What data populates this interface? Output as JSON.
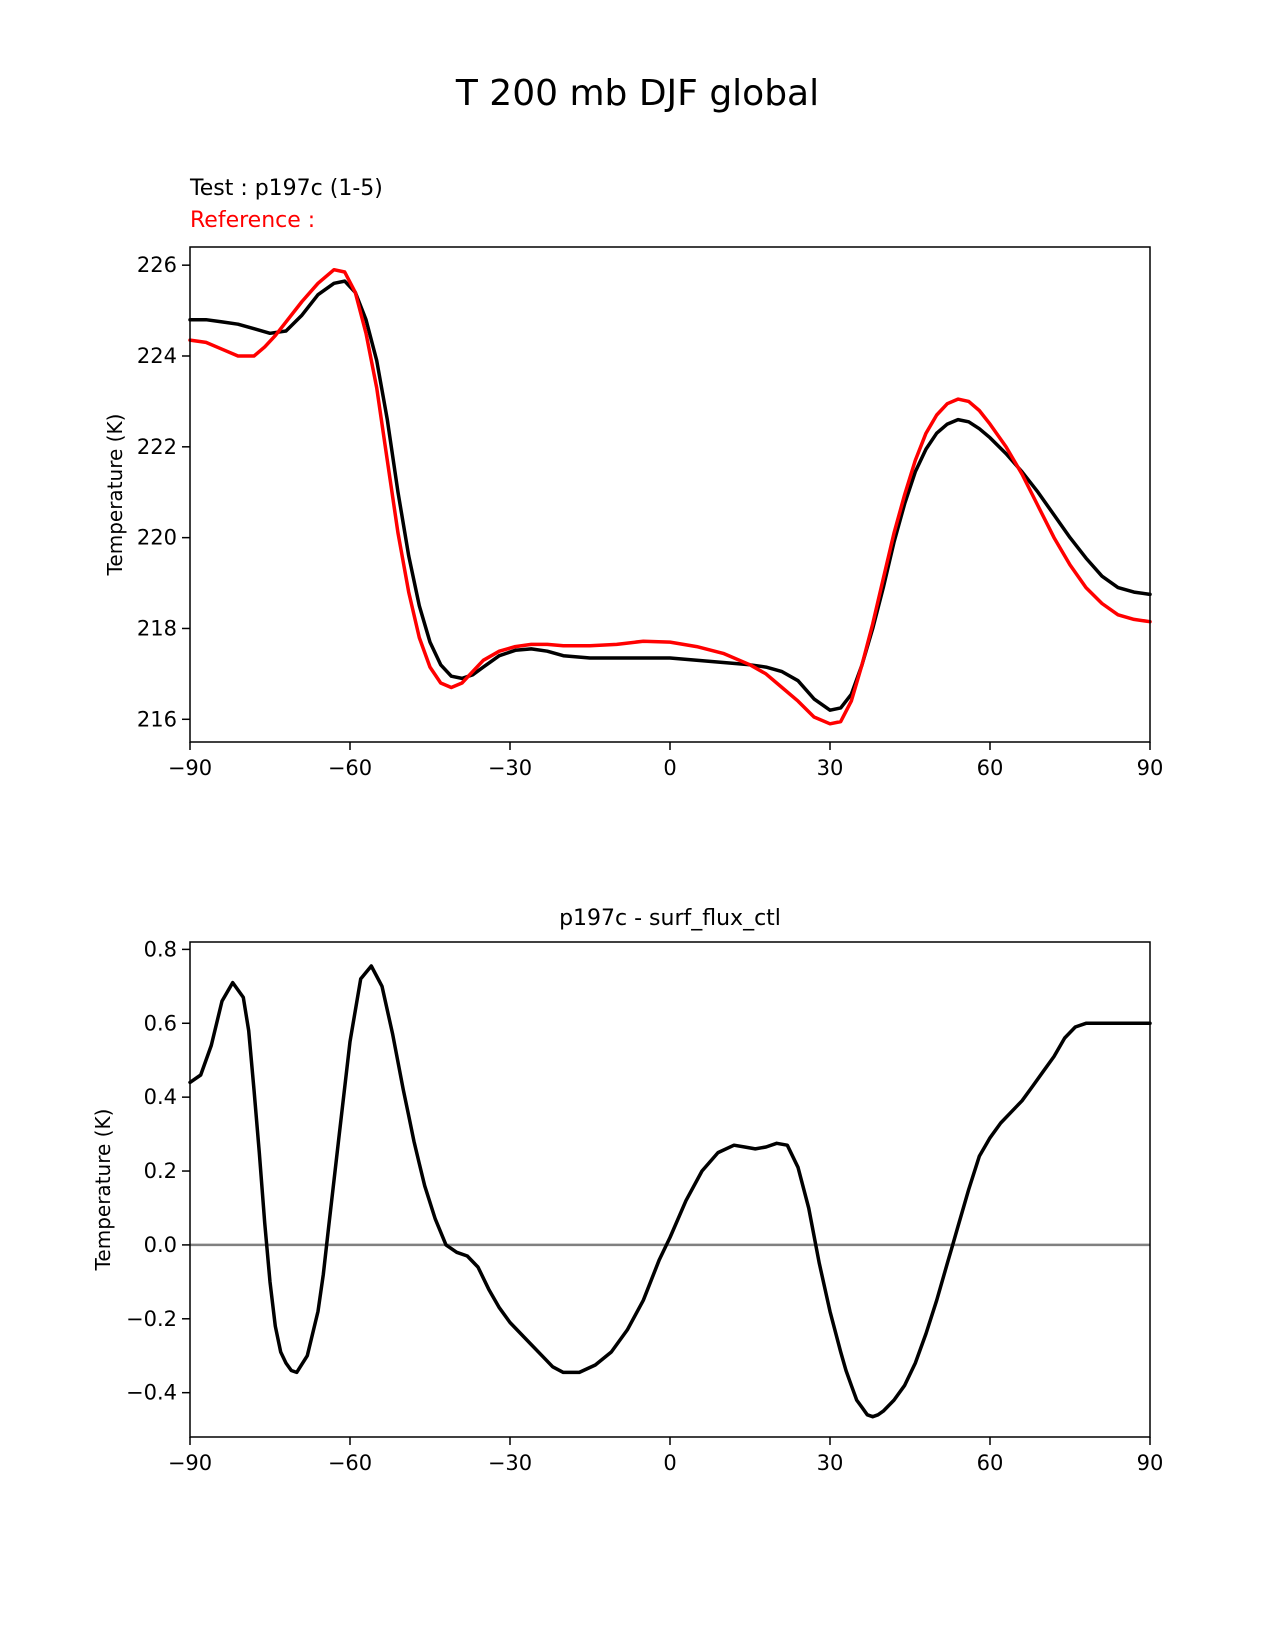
{
  "figure_title": "T 200 mb DJF global",
  "chart_data": [
    {
      "type": "line",
      "legend": {
        "test_label": "Test : p197c (1-5)",
        "reference_label": "Reference :"
      },
      "title": "",
      "xlabel": "",
      "ylabel": "Temperature (K)",
      "xlim": [
        -90,
        90
      ],
      "ylim": [
        215.5,
        226.4
      ],
      "xticks": [
        -90,
        -60,
        -30,
        0,
        30,
        60,
        90
      ],
      "xtick_labels": [
        "−90",
        "−60",
        "−30",
        "0",
        "30",
        "60",
        "90"
      ],
      "yticks": [
        216,
        218,
        220,
        222,
        224,
        226
      ],
      "ytick_labels": [
        "216",
        "218",
        "220",
        "222",
        "224",
        "226"
      ],
      "series": [
        {
          "name": "Test : p197c (1-5)",
          "color": "#000000",
          "x": [
            -90,
            -87,
            -84,
            -81,
            -78,
            -75,
            -72,
            -69,
            -66,
            -63,
            -61,
            -59,
            -57,
            -55,
            -53,
            -51,
            -49,
            -47,
            -45,
            -43,
            -41,
            -39,
            -37,
            -35,
            -32,
            -29,
            -26,
            -23,
            -20,
            -15,
            -10,
            -5,
            0,
            5,
            10,
            15,
            18,
            21,
            24,
            27,
            30,
            32,
            34,
            36,
            38,
            40,
            42,
            44,
            46,
            48,
            50,
            52,
            54,
            56,
            58,
            60,
            63,
            66,
            69,
            72,
            75,
            78,
            81,
            84,
            87,
            90
          ],
          "values": [
            224.8,
            224.8,
            224.75,
            224.7,
            224.6,
            224.5,
            224.55,
            224.9,
            225.35,
            225.6,
            225.65,
            225.4,
            224.8,
            223.9,
            222.6,
            221.0,
            219.6,
            218.5,
            217.7,
            217.2,
            216.95,
            216.9,
            216.98,
            217.15,
            217.4,
            217.52,
            217.55,
            217.5,
            217.4,
            217.35,
            217.35,
            217.35,
            217.35,
            217.3,
            217.25,
            217.2,
            217.15,
            217.05,
            216.85,
            216.45,
            216.2,
            216.25,
            216.55,
            217.2,
            218.0,
            218.9,
            219.9,
            220.75,
            221.45,
            221.95,
            222.3,
            222.5,
            222.6,
            222.55,
            222.4,
            222.2,
            221.85,
            221.45,
            221.0,
            220.5,
            220.0,
            219.55,
            219.15,
            218.9,
            218.8,
            218.75
          ]
        },
        {
          "name": "Reference :",
          "color": "#ff0000",
          "x": [
            -90,
            -87,
            -84,
            -81,
            -78,
            -76,
            -74,
            -72,
            -69,
            -66,
            -63,
            -61,
            -59,
            -57,
            -55,
            -53,
            -51,
            -49,
            -47,
            -45,
            -43,
            -41,
            -39,
            -37,
            -35,
            -32,
            -29,
            -26,
            -23,
            -20,
            -15,
            -10,
            -5,
            0,
            5,
            10,
            15,
            18,
            21,
            24,
            27,
            30,
            32,
            34,
            36,
            38,
            40,
            42,
            44,
            46,
            48,
            50,
            52,
            54,
            56,
            58,
            60,
            63,
            66,
            69,
            72,
            75,
            78,
            81,
            84,
            87,
            90
          ],
          "values": [
            224.35,
            224.3,
            224.15,
            224.0,
            224.0,
            224.2,
            224.45,
            224.75,
            225.2,
            225.6,
            225.9,
            225.85,
            225.4,
            224.5,
            223.3,
            221.7,
            220.1,
            218.8,
            217.8,
            217.15,
            216.8,
            216.7,
            216.8,
            217.05,
            217.3,
            217.5,
            217.6,
            217.65,
            217.65,
            217.62,
            217.62,
            217.65,
            217.72,
            217.7,
            217.6,
            217.45,
            217.2,
            217.0,
            216.7,
            216.4,
            216.05,
            215.9,
            215.95,
            216.4,
            217.2,
            218.1,
            219.1,
            220.1,
            220.95,
            221.7,
            222.3,
            222.7,
            222.95,
            223.05,
            223.0,
            222.8,
            222.5,
            222.0,
            221.4,
            220.7,
            220.0,
            219.4,
            218.9,
            218.55,
            218.3,
            218.2,
            218.15
          ]
        }
      ]
    },
    {
      "type": "line",
      "title": "p197c - surf_flux_ctl",
      "xlabel": "",
      "ylabel": "Temperature (K)",
      "xlim": [
        -90,
        90
      ],
      "ylim": [
        -0.52,
        0.82
      ],
      "xticks": [
        -90,
        -60,
        -30,
        0,
        30,
        60,
        90
      ],
      "xtick_labels": [
        "−90",
        "−60",
        "−30",
        "0",
        "30",
        "60",
        "90"
      ],
      "yticks": [
        -0.4,
        -0.2,
        0.0,
        0.2,
        0.4,
        0.6,
        0.8
      ],
      "ytick_labels": [
        "−0.4",
        "−0.2",
        "0.0",
        "0.2",
        "0.4",
        "0.6",
        "0.8"
      ],
      "zero_line_color": "#808080",
      "series": [
        {
          "name": "",
          "color": "#000000",
          "x": [
            -90,
            -88,
            -86,
            -84,
            -82,
            -80,
            -79,
            -78,
            -77,
            -76,
            -75,
            -74,
            -73,
            -72,
            -71,
            -70,
            -68,
            -66,
            -65,
            -64,
            -62,
            -60,
            -58,
            -56,
            -54,
            -52,
            -50,
            -49,
            -48,
            -47,
            -46,
            -44,
            -42,
            -40,
            -38,
            -36,
            -34,
            -32,
            -30,
            -28,
            -26,
            -24,
            -22,
            -20,
            -17,
            -14,
            -11,
            -8,
            -5,
            -2,
            0,
            3,
            6,
            9,
            12,
            14,
            16,
            18,
            20,
            22,
            24,
            26,
            28,
            30,
            32,
            33,
            34,
            35,
            36,
            37,
            38,
            39,
            40,
            42,
            44,
            46,
            48,
            50,
            52,
            53,
            54,
            56,
            58,
            60,
            62,
            64,
            66,
            68,
            70,
            72,
            74,
            76,
            78,
            80,
            82,
            84,
            86,
            88,
            90
          ],
          "values": [
            0.44,
            0.46,
            0.54,
            0.66,
            0.71,
            0.67,
            0.58,
            0.42,
            0.25,
            0.06,
            -0.1,
            -0.22,
            -0.29,
            -0.32,
            -0.34,
            -0.345,
            -0.3,
            -0.18,
            -0.08,
            0.05,
            0.3,
            0.55,
            0.72,
            0.755,
            0.7,
            0.57,
            0.42,
            0.35,
            0.28,
            0.22,
            0.16,
            0.07,
            0.0,
            -0.02,
            -0.03,
            -0.06,
            -0.12,
            -0.17,
            -0.21,
            -0.24,
            -0.27,
            -0.3,
            -0.33,
            -0.345,
            -0.345,
            -0.325,
            -0.29,
            -0.23,
            -0.15,
            -0.04,
            0.02,
            0.12,
            0.2,
            0.25,
            0.27,
            0.265,
            0.26,
            0.265,
            0.275,
            0.27,
            0.21,
            0.1,
            -0.05,
            -0.18,
            -0.29,
            -0.34,
            -0.38,
            -0.42,
            -0.44,
            -0.46,
            -0.465,
            -0.46,
            -0.45,
            -0.42,
            -0.38,
            -0.32,
            -0.24,
            -0.15,
            -0.05,
            0.0,
            0.05,
            0.15,
            0.24,
            0.29,
            0.33,
            0.36,
            0.39,
            0.43,
            0.47,
            0.51,
            0.56,
            0.59,
            0.6,
            0.6,
            0.6,
            0.6,
            0.6,
            0.6,
            0.6
          ]
        }
      ]
    }
  ]
}
